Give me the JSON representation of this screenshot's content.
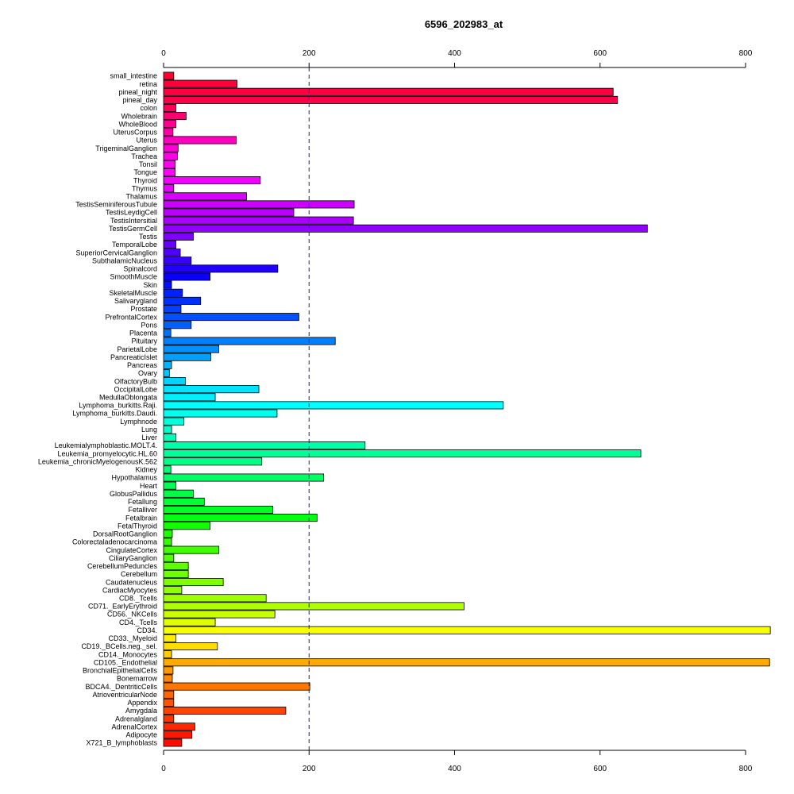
{
  "chart_data": {
    "type": "bar",
    "orientation": "horizontal",
    "title": "6596_202983_at",
    "xlabel": "",
    "ylabel": "",
    "xlim": [
      0,
      830
    ],
    "x_ticks": [
      0,
      200,
      400,
      600,
      800
    ],
    "x_tick_labels": [
      "0",
      "200",
      "400",
      "600",
      "800"
    ],
    "axis_positions": [
      "top",
      "bottom"
    ],
    "reference_line": {
      "value": 200,
      "style": "dashed",
      "color": "#1a1a80"
    },
    "grid": false,
    "legend": "none",
    "categories": [
      "small_intestine",
      "retina",
      "pineal_night",
      "pineal_day",
      "colon",
      "Wholebrain",
      "WholeBlood",
      "UterusCorpus",
      "Uterus",
      "TrigeminalGanglion",
      "Trachea",
      "Tonsil",
      "Tongue",
      "Thyroid",
      "Thymus",
      "Thalamus",
      "TestisSeminiferousTubule",
      "TestisLeydigCell",
      "TestisIntersitial",
      "TestisGermCell",
      "Testis",
      "TemporalLobe",
      "SuperiorCervicalGanglion",
      "SubthalamicNucleus",
      "Spinalcord",
      "SmoothMuscle",
      "Skin",
      "SkeletalMuscle",
      "Salivarygland",
      "Prostate",
      "PrefrontalCortex",
      "Pons",
      "Placenta",
      "Pituitary",
      "ParietalLobe",
      "PancreaticIslet",
      "Pancreas",
      "Ovary",
      "OlfactoryBulb",
      "OccipitalLobe",
      "MedullaOblongata",
      "Lymphoma_burkitts.Raji.",
      "Lymphoma_burkitts.Daudi.",
      "Lymphnode",
      "Lung",
      "Liver",
      "Leukemialymphoblastic.MOLT.4.",
      "Leukemia_promyelocytic.HL.60",
      "Leukemia_chronicMyelogenousK.562",
      "Kidney",
      "Hypothalamus",
      "Heart",
      "GlobusPallidus",
      "Fetallung",
      "Fetalliver",
      "Fetalbrain",
      "FetalThyroid",
      "DorsalRootGanglion",
      "Colorectaladenocarcinoma",
      "CingulateCortex",
      "CiliaryGanglion",
      "CerebellumPeduncles",
      "Cerebellum",
      "Caudatenucleus",
      "CardiacMyocytes",
      "CD8._Tcells",
      "CD71._EarlyErythroid",
      "CD56._NKCells",
      "CD4._Tcells",
      "CD34.",
      "CD33._Myeloid",
      "CD19._BCells.neg._sel.",
      "CD14._Monocytes",
      "CD105._Endothelial",
      "BronchialEpithelialCells",
      "Bonemarrow",
      "BDCA4._DentriticCells",
      "AtrioventricularNode",
      "Appendix",
      "Amygdala",
      "Adrenalgland",
      "AdrenalCortex",
      "Adipocyte",
      "X721_B_lymphoblasts"
    ],
    "values": [
      14,
      101,
      618,
      624,
      17,
      31,
      17,
      13,
      100,
      20,
      19,
      16,
      16,
      133,
      14,
      114,
      262,
      179,
      261,
      665,
      41,
      17,
      23,
      38,
      157,
      64,
      11,
      26,
      51,
      24,
      186,
      38,
      10,
      236,
      76,
      65,
      11,
      8,
      30,
      131,
      71,
      467,
      156,
      28,
      11,
      17,
      277,
      656,
      135,
      10,
      220,
      17,
      41,
      56,
      150,
      211,
      64,
      12,
      11,
      76,
      14,
      34,
      34,
      82,
      25,
      141,
      413,
      153,
      71,
      834,
      17,
      74,
      11,
      833,
      13,
      12,
      201,
      14,
      14,
      168,
      14,
      43,
      39,
      25
    ],
    "bar_colors": [
      "#ff0030",
      "#ff0038",
      "#ff0040",
      "#ff0048",
      "#ff0058",
      "#ff0070",
      "#ff0090",
      "#ff00a8",
      "#ff00c0",
      "#ff00d8",
      "#ff00e8",
      "#ff00f4",
      "#ff00ff",
      "#f000ff",
      "#e800ff",
      "#d800ff",
      "#cc00ff",
      "#bc00ff",
      "#ac00ff",
      "#9000ff",
      "#8000ff",
      "#6800ff",
      "#5000ff",
      "#3800ff",
      "#2000ff",
      "#0800ff",
      "#0010ff",
      "#0020ff",
      "#0030ff",
      "#0040ff",
      "#0050ff",
      "#0060ff",
      "#0070ff",
      "#0080ff",
      "#0090ff",
      "#00a0ff",
      "#00b4ff",
      "#00c4ff",
      "#00d4ff",
      "#00e4ff",
      "#00f0ff",
      "#00ffff",
      "#00ffee",
      "#00ffdd",
      "#00ffcc",
      "#00ffbb",
      "#00ffaa",
      "#00ff99",
      "#00ff88",
      "#00ff77",
      "#00ff66",
      "#00ff55",
      "#00ff44",
      "#00ff33",
      "#00ff22",
      "#00ff11",
      "#10ff00",
      "#20ff00",
      "#30ff00",
      "#40ff00",
      "#50ff00",
      "#60ff00",
      "#70ff00",
      "#80ff00",
      "#90ff00",
      "#a0ff00",
      "#b0ff00",
      "#c8ff00",
      "#e0ff00",
      "#f8ff00",
      "#ffee00",
      "#ffdd00",
      "#ffcc00",
      "#ffaa00",
      "#ff9900",
      "#ff8800",
      "#ff7700",
      "#ff6600",
      "#ff5500",
      "#ff4400",
      "#ff3300",
      "#ff2600",
      "#ff1800",
      "#ff0c00"
    ]
  }
}
